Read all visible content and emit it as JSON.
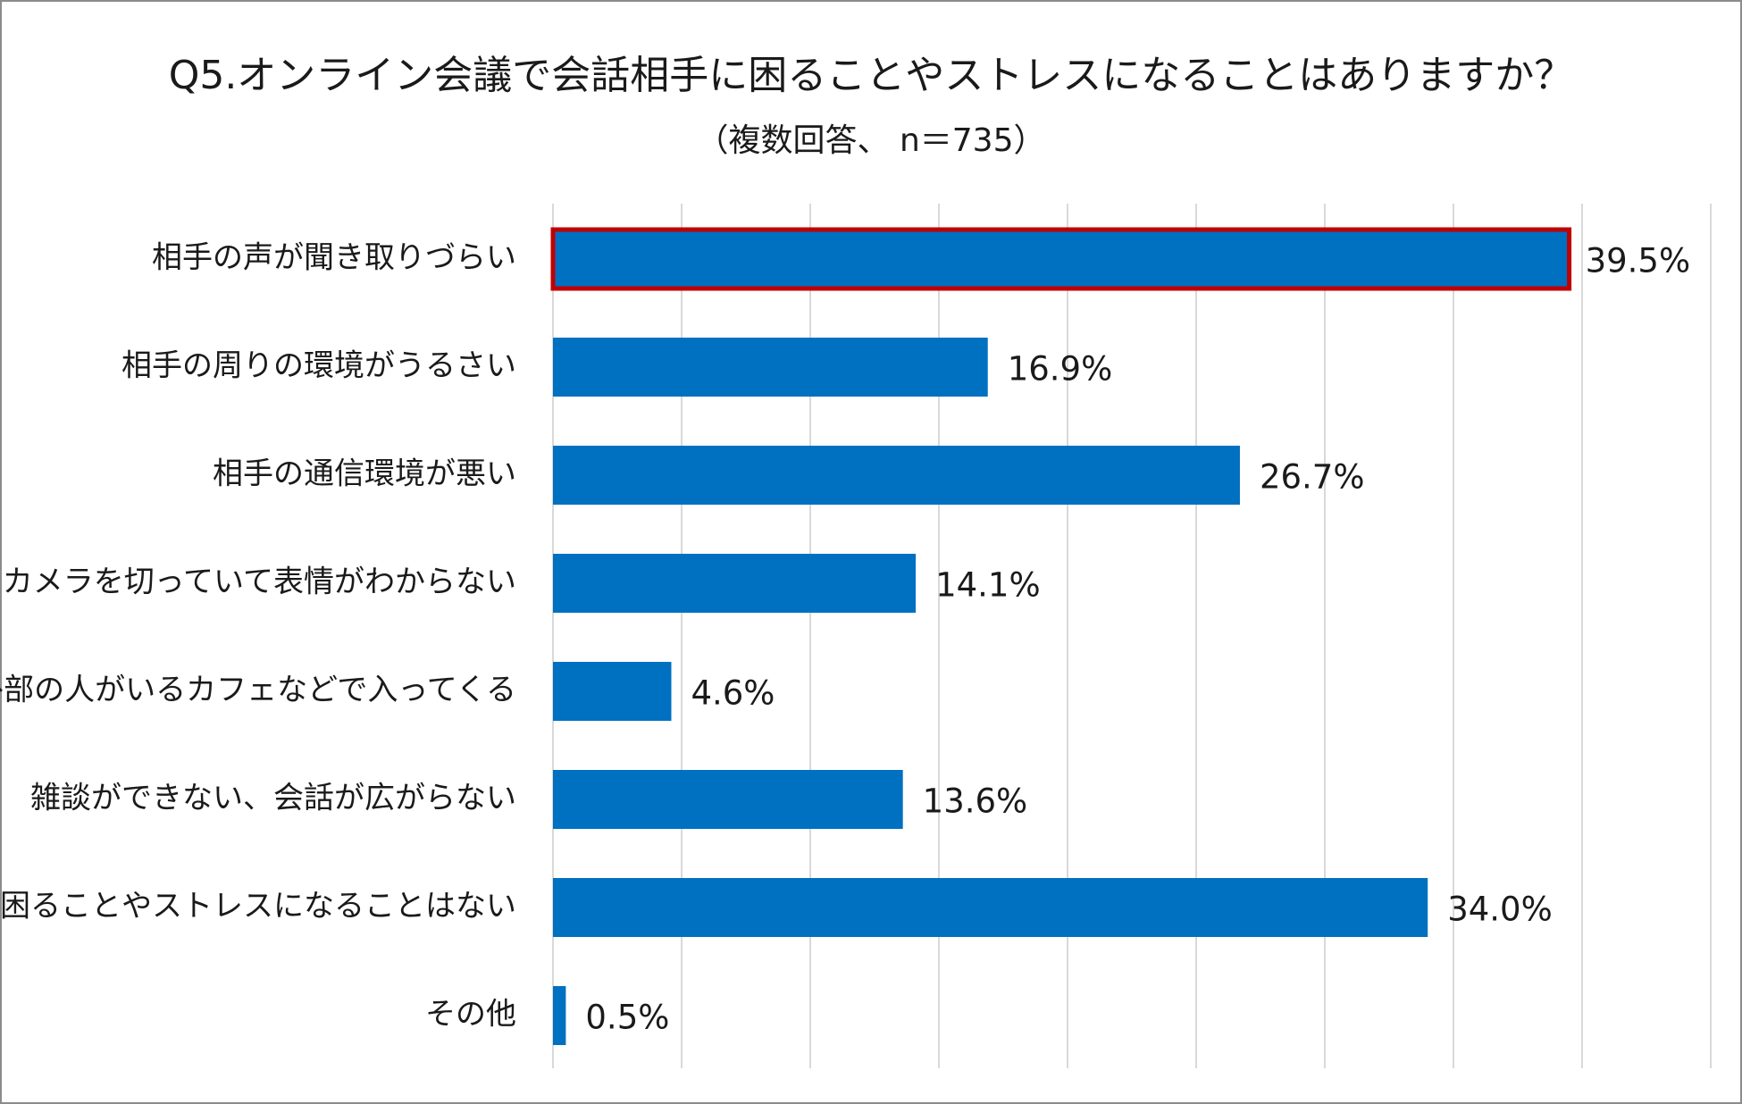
{
  "chart_data": {
    "type": "bar",
    "orientation": "horizontal",
    "title": "Q5.オンライン会議で会話相手に困ることやストレスになることはありますか？",
    "subtitle": "（複数回答、 n＝735）",
    "categories": [
      "相手の声が聞き取りづらい",
      "相手の周りの環境がうるさい",
      "相手の通信環境が悪い",
      "カメラを切っていて表情がわからない",
      "外部の人がいるカフェなどで入ってくる",
      "雑談ができない、会話が広がらない",
      "困ることやストレスになることはない",
      "その他"
    ],
    "values": [
      39.5,
      16.9,
      26.7,
      14.1,
      4.6,
      13.6,
      34.0,
      0.5
    ],
    "value_labels": [
      "39.5%",
      "16.9%",
      "26.7%",
      "14.1%",
      "4.6%",
      "13.6%",
      "34.0%",
      "0.5%"
    ],
    "highlighted_index": 0,
    "xlim": [
      0,
      45
    ],
    "gridline_step": 5,
    "grid": true,
    "xlabel": "",
    "ylabel": "",
    "legend": "none"
  },
  "colors": {
    "bar": "#0070c0",
    "highlight_border": "#c00000",
    "grid": "#d9d9d9",
    "frame": "#8c8c8c",
    "text": "#1a1a1a"
  }
}
